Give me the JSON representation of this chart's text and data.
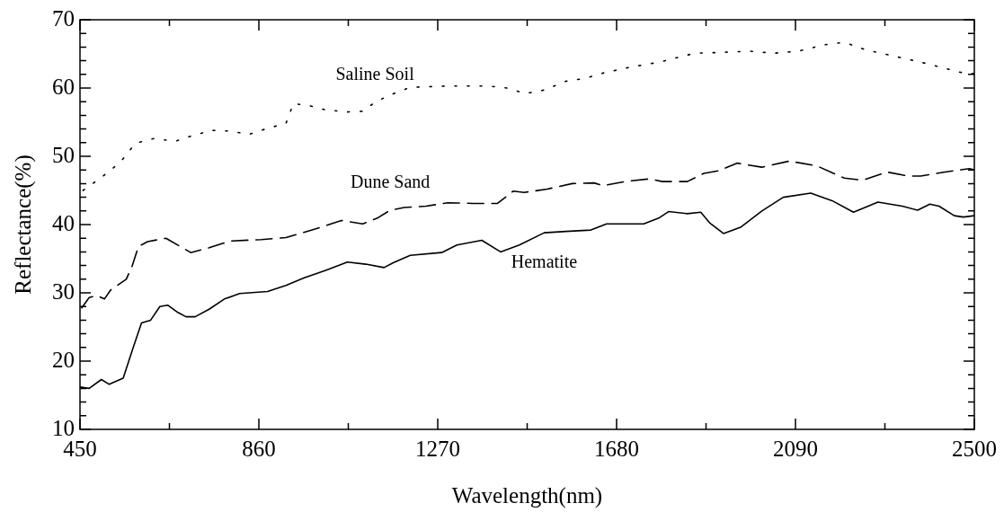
{
  "chart_data": {
    "type": "line",
    "xlabel": "Wavelength(nm)",
    "ylabel": "Reflectance(%)",
    "xlim": [
      450,
      2500
    ],
    "ylim": [
      10,
      70
    ],
    "xticks": [
      450,
      {
        "value": 655,
        "label": null
      },
      860,
      {
        "value": 1065,
        "label": null
      },
      1270,
      {
        "value": 1475,
        "label": null
      },
      1680,
      {
        "value": 1885,
        "label": null
      },
      2090,
      {
        "value": 2295,
        "label": null
      },
      2500
    ],
    "yticks": [
      10,
      {
        "value": 12,
        "label": null
      },
      {
        "value": 14,
        "label": null
      },
      {
        "value": 16,
        "label": null
      },
      {
        "value": 18,
        "label": null
      },
      20,
      {
        "value": 22,
        "label": null
      },
      {
        "value": 24,
        "label": null
      },
      {
        "value": 26,
        "label": null
      },
      {
        "value": 28,
        "label": null
      },
      30,
      {
        "value": 32,
        "label": null
      },
      {
        "value": 34,
        "label": null
      },
      {
        "value": 36,
        "label": null
      },
      {
        "value": 38,
        "label": null
      },
      40,
      {
        "value": 42,
        "label": null
      },
      {
        "value": 44,
        "label": null
      },
      {
        "value": 46,
        "label": null
      },
      {
        "value": 48,
        "label": null
      },
      50,
      {
        "value": 52,
        "label": null
      },
      {
        "value": 54,
        "label": null
      },
      {
        "value": 56,
        "label": null
      },
      {
        "value": 58,
        "label": null
      },
      60,
      {
        "value": 62,
        "label": null
      },
      {
        "value": 64,
        "label": null
      },
      {
        "value": 66,
        "label": null
      },
      {
        "value": 68,
        "label": null
      },
      70
    ],
    "grid": false,
    "legend": false,
    "marker": "none",
    "series": [
      {
        "name": "Saline Soil",
        "color": "#000000",
        "line_style": "dotted",
        "x": [
          457,
          499,
          542,
          577,
          619,
          668,
          711,
          753,
          795,
          837,
          880,
          922,
          939,
          971,
          1013,
          1063,
          1098,
          1126,
          1161,
          1207,
          1293,
          1386,
          1428,
          1471,
          1514,
          1564,
          1607,
          1649,
          1707,
          1778,
          1859,
          1915,
          1985,
          2041,
          2097,
          2153,
          2202,
          2251,
          2314,
          2370,
          2433,
          2468,
          2500
        ],
        "values": [
          45.0,
          46.9,
          49.1,
          51.9,
          52.6,
          52.2,
          53.1,
          53.8,
          53.7,
          53.2,
          54.1,
          54.8,
          57.7,
          57.5,
          56.8,
          56.5,
          56.6,
          57.9,
          59.0,
          60.1,
          60.3,
          60.3,
          60.0,
          59.2,
          59.7,
          61.0,
          61.4,
          62.2,
          63.0,
          63.8,
          65.1,
          65.2,
          65.4,
          65.1,
          65.4,
          66.3,
          66.7,
          65.6,
          64.7,
          63.9,
          62.9,
          62.3,
          62.1
        ]
      },
      {
        "name": "Dune Sand",
        "color": "#000000",
        "line_style": "dashed",
        "x": [
          454,
          471,
          489,
          506,
          520,
          556,
          570,
          584,
          605,
          647,
          704,
          746,
          795,
          865,
          922,
          992,
          1049,
          1098,
          1133,
          1161,
          1193,
          1243,
          1293,
          1350,
          1407,
          1443,
          1468,
          1521,
          1578,
          1628,
          1649,
          1699,
          1756,
          1785,
          1842,
          1880,
          1915,
          1957,
          2013,
          2076,
          2139,
          2202,
          2244,
          2300,
          2349,
          2377,
          2433,
          2489,
          2500
        ],
        "values": [
          27.8,
          29.3,
          29.6,
          29.1,
          30.4,
          32.0,
          34.0,
          36.8,
          37.5,
          38.0,
          35.9,
          36.6,
          37.6,
          37.8,
          38.1,
          39.4,
          40.6,
          40.1,
          41.0,
          42.1,
          42.5,
          42.7,
          43.2,
          43.1,
          43.1,
          44.9,
          44.7,
          45.2,
          46.0,
          46.1,
          45.7,
          46.3,
          46.7,
          46.3,
          46.3,
          47.5,
          47.9,
          49.0,
          48.4,
          49.3,
          48.6,
          46.8,
          46.5,
          47.7,
          47.1,
          47.1,
          47.7,
          48.2,
          48.0
        ]
      },
      {
        "name": "Hematite",
        "color": "#000000",
        "line_style": "solid",
        "x": [
          450,
          471,
          499,
          517,
          549,
          570,
          591,
          612,
          633,
          651,
          675,
          693,
          714,
          746,
          781,
          816,
          880,
          922,
          964,
          1013,
          1063,
          1105,
          1147,
          1168,
          1207,
          1279,
          1314,
          1371,
          1414,
          1457,
          1514,
          1564,
          1621,
          1657,
          1742,
          1778,
          1799,
          1842,
          1873,
          1894,
          1925,
          1964,
          2013,
          2062,
          2125,
          2174,
          2223,
          2279,
          2335,
          2370,
          2398,
          2419,
          2454,
          2475,
          2500
        ],
        "values": [
          16.2,
          16.0,
          17.3,
          16.6,
          17.5,
          21.6,
          25.6,
          26.0,
          28.0,
          28.2,
          27.1,
          26.5,
          26.5,
          27.6,
          29.1,
          29.9,
          30.2,
          31.1,
          32.2,
          33.3,
          34.5,
          34.2,
          33.7,
          34.4,
          35.5,
          35.9,
          37.0,
          37.7,
          36.0,
          37.0,
          38.8,
          39.0,
          39.2,
          40.1,
          40.1,
          41.0,
          41.9,
          41.6,
          41.8,
          40.2,
          38.7,
          39.6,
          42.0,
          44.0,
          44.6,
          43.5,
          41.8,
          43.3,
          42.7,
          42.1,
          43.0,
          42.7,
          41.3,
          41.1,
          41.3
        ]
      }
    ]
  }
}
